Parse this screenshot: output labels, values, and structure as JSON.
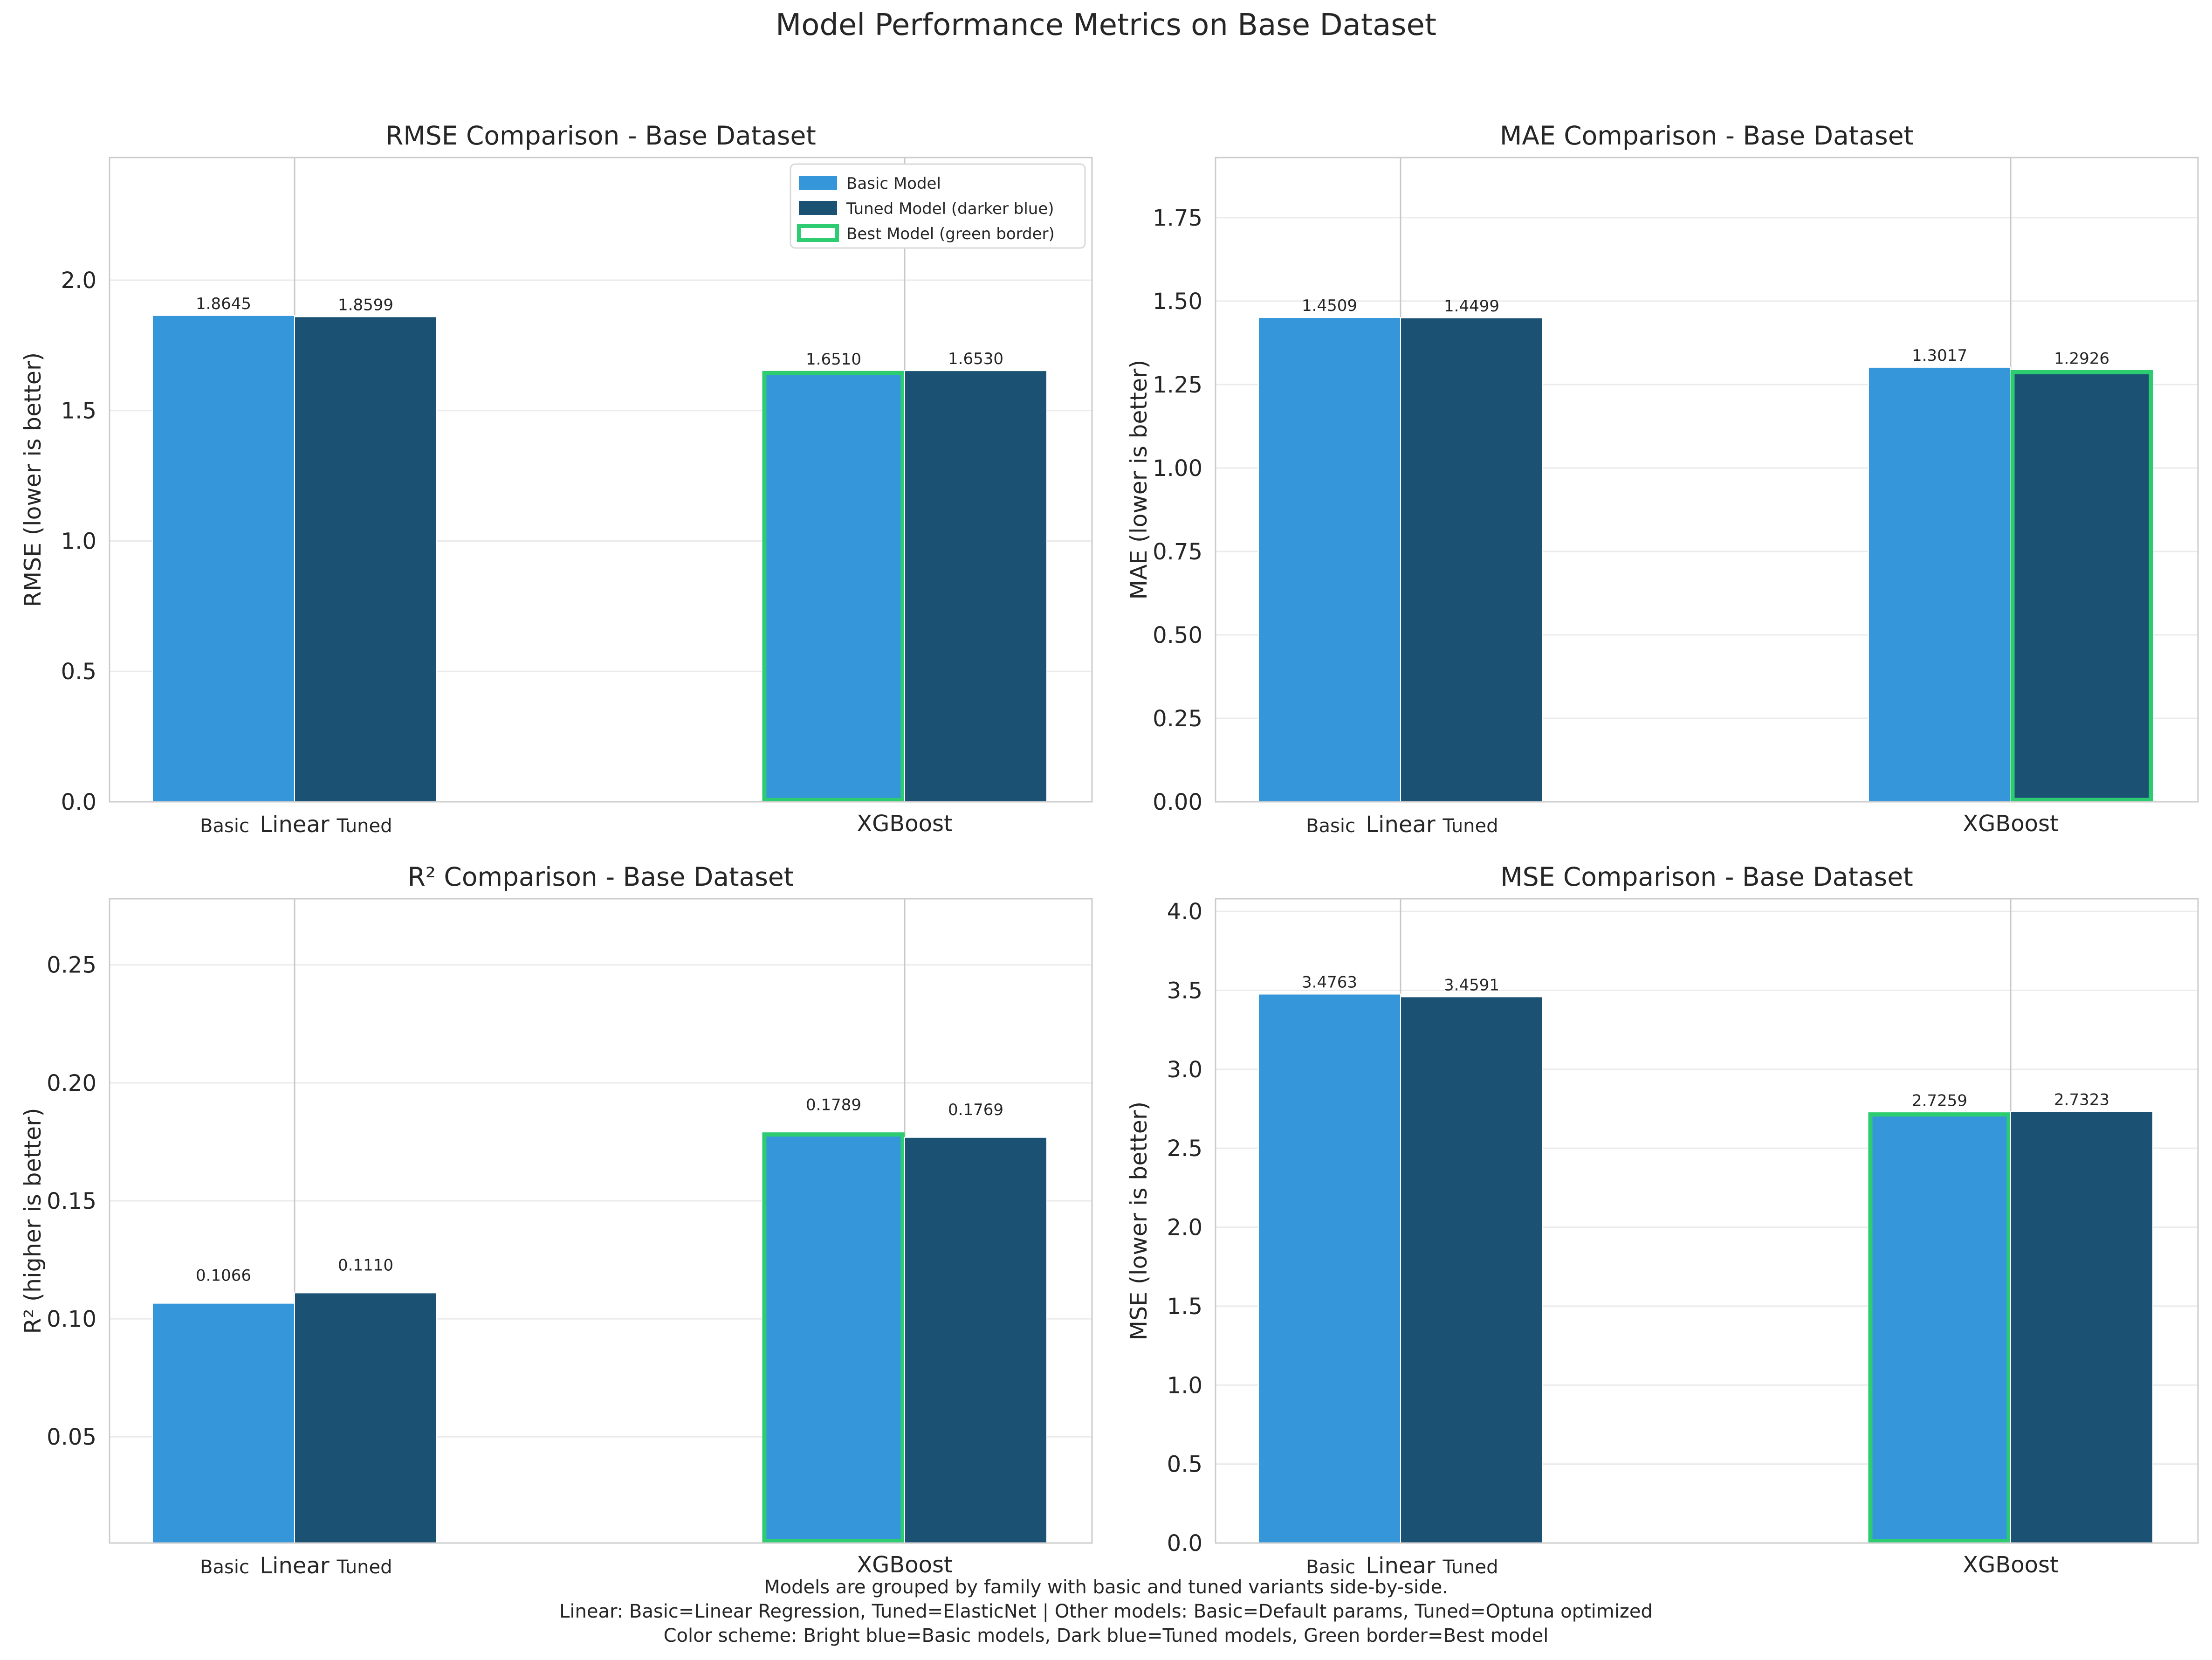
{
  "figure_title": "Model Performance Metrics on Base Dataset",
  "footer_lines": [
    "Models are grouped by family with basic and tuned variants side-by-side.",
    "Linear: Basic=Linear Regression, Tuned=ElasticNet | Other models: Basic=Default params, Tuned=Optuna optimized",
    "Color scheme: Bright blue=Basic models, Dark blue=Tuned models, Green border=Best model"
  ],
  "colors": {
    "basic": "#3596d9",
    "tuned": "#1b5173",
    "best_border": "#2ecc71",
    "grid": "#ebebeb",
    "divider": "#c8c8c8",
    "frame": "#cccccc"
  },
  "legend": {
    "basic": "Basic Model",
    "tuned": "Tuned Model (darker blue)",
    "best": "Best Model (green border)"
  },
  "chart_data": [
    {
      "type": "bar",
      "title": "RMSE Comparison - Base Dataset",
      "xlabel": "",
      "ylabel": "RMSE (lower is better)",
      "ylim": [
        0,
        2.47
      ],
      "yticks": [
        0.0,
        0.5,
        1.0,
        1.5,
        2.0
      ],
      "tick_decimals": 1,
      "families": [
        "Linear",
        "XGBoost"
      ],
      "variant_labels": [
        "Basic",
        "Tuned"
      ],
      "series": [
        {
          "name": "Basic Model",
          "values": [
            1.8645,
            1.651
          ]
        },
        {
          "name": "Tuned Model (darker blue)",
          "values": [
            1.8599,
            1.653
          ]
        }
      ],
      "value_labels": [
        [
          "1.8645",
          "1.6510"
        ],
        [
          "1.8599",
          "1.6530"
        ]
      ],
      "best": {
        "series": 0,
        "family": 1
      },
      "legend": "upper right",
      "grid": true
    },
    {
      "type": "bar",
      "title": "MAE Comparison - Base Dataset",
      "xlabel": "",
      "ylabel": "MAE (lower is better)",
      "ylim": [
        0,
        1.93
      ],
      "yticks": [
        0.0,
        0.25,
        0.5,
        0.75,
        1.0,
        1.25,
        1.5,
        1.75
      ],
      "tick_decimals": 2,
      "families": [
        "Linear",
        "XGBoost"
      ],
      "variant_labels": [
        "Basic",
        "Tuned"
      ],
      "series": [
        {
          "name": "Basic Model",
          "values": [
            1.4509,
            1.3017
          ]
        },
        {
          "name": "Tuned Model (darker blue)",
          "values": [
            1.4499,
            1.2926
          ]
        }
      ],
      "value_labels": [
        [
          "1.4509",
          "1.3017"
        ],
        [
          "1.4499",
          "1.2926"
        ]
      ],
      "best": {
        "series": 1,
        "family": 1
      },
      "legend": "none",
      "grid": true
    },
    {
      "type": "bar",
      "title": "R² Comparison - Base Dataset",
      "xlabel": "",
      "ylabel": "R² (higher is better)",
      "ylim": [
        0.005,
        0.278
      ],
      "yticks": [
        0.05,
        0.1,
        0.15,
        0.2,
        0.25
      ],
      "tick_decimals": 2,
      "families": [
        "Linear",
        "XGBoost"
      ],
      "variant_labels": [
        "Basic",
        "Tuned"
      ],
      "series": [
        {
          "name": "Basic Model",
          "values": [
            0.1066,
            0.1789
          ]
        },
        {
          "name": "Tuned Model (darker blue)",
          "values": [
            0.111,
            0.1769
          ]
        }
      ],
      "value_labels": [
        [
          "0.1066",
          "0.1789"
        ],
        [
          "0.1110",
          "0.1769"
        ]
      ],
      "best": {
        "series": 0,
        "family": 1
      },
      "legend": "none",
      "grid": true
    },
    {
      "type": "bar",
      "title": "MSE Comparison - Base Dataset",
      "xlabel": "",
      "ylabel": "MSE (lower is better)",
      "ylim": [
        0,
        4.08
      ],
      "yticks": [
        0.0,
        0.5,
        1.0,
        1.5,
        2.0,
        2.5,
        3.0,
        3.5,
        4.0
      ],
      "tick_decimals": 1,
      "families": [
        "Linear",
        "XGBoost"
      ],
      "variant_labels": [
        "Basic",
        "Tuned"
      ],
      "series": [
        {
          "name": "Basic Model",
          "values": [
            3.4763,
            2.7259
          ]
        },
        {
          "name": "Tuned Model (darker blue)",
          "values": [
            3.4591,
            2.7323
          ]
        }
      ],
      "value_labels": [
        [
          "3.4763",
          "2.7259"
        ],
        [
          "3.4591",
          "2.7323"
        ]
      ],
      "best": {
        "series": 0,
        "family": 1
      },
      "legend": "none",
      "grid": true
    }
  ]
}
